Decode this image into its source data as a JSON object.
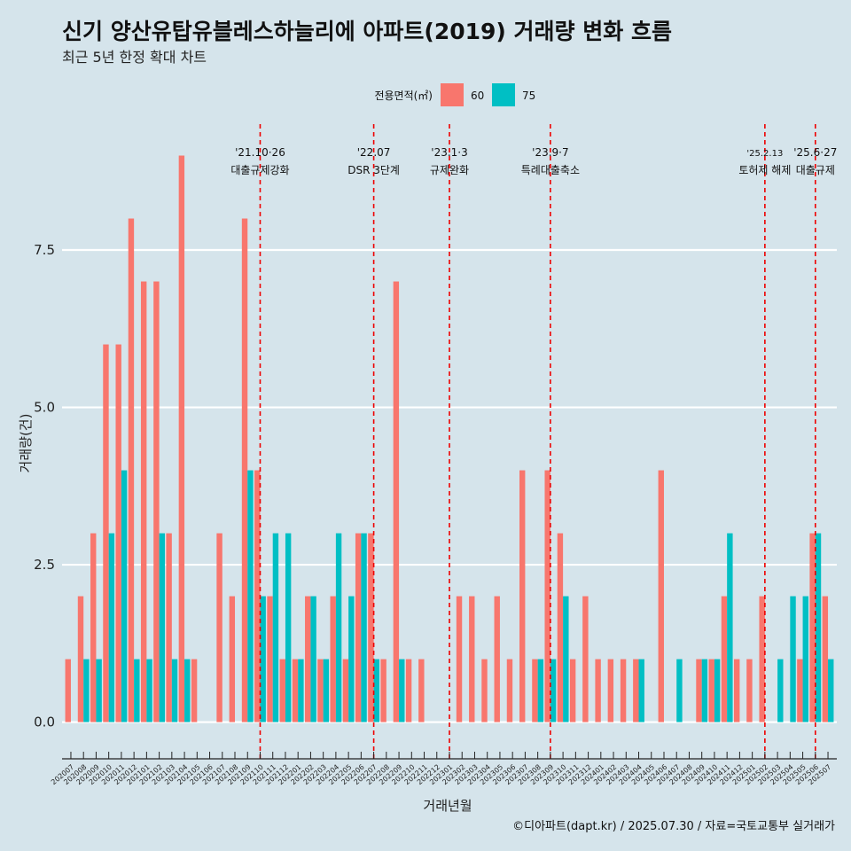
{
  "chart_data": {
    "type": "bar",
    "title": "신기 양산유탑유블레스하늘리에 아파트(2019) 거래량 변화 흐름",
    "subtitle": "최근 5년 한정 확대 차트",
    "xlabel": "거래년월",
    "ylabel": "거래량(건)",
    "caption": "©디아파트(dapt.kr) / 2025.07.30 / 자료=국토교통부 실거래가",
    "legend_title": "전용면적(㎡)",
    "ylim": [
      -0.4,
      9.5
    ],
    "yticks": [
      0.0,
      2.5,
      5.0,
      7.5
    ],
    "ytick_labels": [
      "0.0",
      "2.5",
      "5.0",
      "7.5"
    ],
    "colors": {
      "s60": "#f8766d",
      "s75": "#00bfc4",
      "grid": "#ffffff",
      "vline": "#ee0000",
      "background": "#d5e4eb"
    },
    "categories": [
      "202007",
      "202008",
      "202009",
      "202010",
      "202011",
      "202012",
      "202101",
      "202102",
      "202103",
      "202104",
      "202105",
      "202106",
      "202107",
      "202108",
      "202109",
      "202110",
      "202111",
      "202112",
      "202201",
      "202202",
      "202203",
      "202204",
      "202205",
      "202206",
      "202207",
      "202208",
      "202209",
      "202210",
      "202211",
      "202212",
      "202301",
      "202302",
      "202303",
      "202304",
      "202305",
      "202306",
      "202307",
      "202308",
      "202309",
      "202310",
      "202311",
      "202312",
      "202401",
      "202402",
      "202403",
      "202404",
      "202405",
      "202406",
      "202407",
      "202408",
      "202409",
      "202410",
      "202411",
      "202412",
      "202501",
      "202502",
      "202503",
      "202504",
      "202505",
      "202506",
      "202507"
    ],
    "series": [
      {
        "name": "60",
        "values": [
          1,
          2,
          3,
          6,
          6,
          8,
          7,
          7,
          3,
          9,
          1,
          0,
          3,
          2,
          8,
          4,
          2,
          1,
          1,
          2,
          1,
          2,
          1,
          3,
          3,
          1,
          7,
          1,
          1,
          0,
          0,
          2,
          2,
          1,
          2,
          1,
          4,
          1,
          4,
          3,
          1,
          2,
          1,
          1,
          1,
          1,
          0,
          4,
          0,
          0,
          1,
          1,
          2,
          1,
          1,
          2,
          0,
          0,
          1,
          3,
          2
        ]
      },
      {
        "name": "75",
        "values": [
          0,
          1,
          1,
          3,
          4,
          1,
          1,
          3,
          1,
          1,
          0,
          0,
          0,
          0,
          4,
          2,
          3,
          3,
          1,
          2,
          1,
          3,
          2,
          3,
          1,
          0,
          1,
          0,
          0,
          0,
          0,
          0,
          0,
          0,
          0,
          0,
          0,
          1,
          1,
          2,
          0,
          0,
          0,
          0,
          0,
          1,
          0,
          0,
          1,
          0,
          1,
          1,
          3,
          0,
          0,
          0,
          1,
          2,
          2,
          3,
          1
        ]
      }
    ],
    "annotations": [
      {
        "month": "202110",
        "date": "'21.10·26",
        "label": "대출규제강화"
      },
      {
        "month": "202207",
        "date": "'22.07",
        "label": "DSR 3단계"
      },
      {
        "month": "202301",
        "date": "'23.1·3",
        "label": "규제완화"
      },
      {
        "month": "202309",
        "date": "'23.9·7",
        "label": "특례대출축소"
      },
      {
        "month": "202502",
        "date": "'25.2.13",
        "label": "토허제 해제"
      },
      {
        "month": "202506",
        "date": "'25.6·27",
        "label": "대출규제"
      }
    ]
  }
}
